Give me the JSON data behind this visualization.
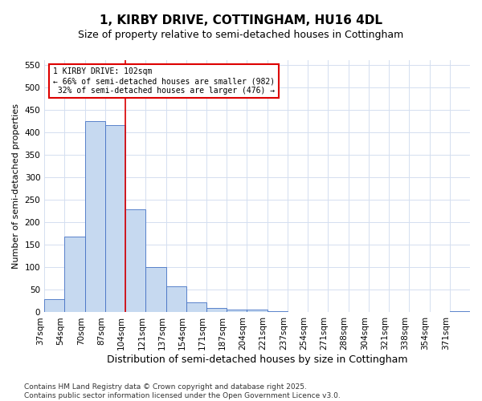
{
  "title": "1, KIRBY DRIVE, COTTINGHAM, HU16 4DL",
  "subtitle": "Size of property relative to semi-detached houses in Cottingham",
  "xlabel": "Distribution of semi-detached houses by size in Cottingham",
  "ylabel": "Number of semi-detached properties",
  "property_label": "1 KIRBY DRIVE: 102sqm",
  "pct_smaller": 66,
  "n_smaller": 982,
  "pct_larger": 32,
  "n_larger": 476,
  "vline_bin_index": 4,
  "bin_labels": [
    "37sqm",
    "54sqm",
    "70sqm",
    "87sqm",
    "104sqm",
    "121sqm",
    "137sqm",
    "154sqm",
    "171sqm",
    "187sqm",
    "204sqm",
    "221sqm",
    "237sqm",
    "254sqm",
    "271sqm",
    "288sqm",
    "304sqm",
    "321sqm",
    "338sqm",
    "354sqm",
    "371sqm"
  ],
  "bar_values": [
    30,
    168,
    425,
    415,
    228,
    100,
    58,
    22,
    10,
    7,
    7,
    2,
    1,
    1,
    0,
    0,
    0,
    0,
    0,
    0,
    2
  ],
  "bar_color": "#c6d9f0",
  "bar_edge_color": "#4472c4",
  "grid_color": "#d4dff0",
  "annotation_box_color": "#dd0000",
  "vline_color": "#dd0000",
  "background_color": "#ffffff",
  "ylim": [
    0,
    560
  ],
  "yticks": [
    0,
    50,
    100,
    150,
    200,
    250,
    300,
    350,
    400,
    450,
    500,
    550
  ],
  "footer": "Contains HM Land Registry data © Crown copyright and database right 2025.\nContains public sector information licensed under the Open Government Licence v3.0.",
  "title_fontsize": 11,
  "subtitle_fontsize": 9,
  "xlabel_fontsize": 9,
  "ylabel_fontsize": 8,
  "tick_fontsize": 7.5,
  "footer_fontsize": 6.5
}
